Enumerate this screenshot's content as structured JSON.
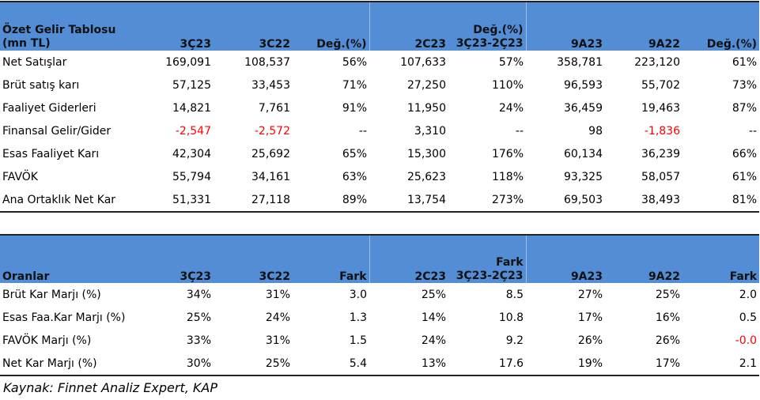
{
  "table1": {
    "header": {
      "title_line1": "Özet Gelir Tablosu",
      "title_line2": "(mn TL)",
      "c1": "3Ç23",
      "c2": "3C22",
      "c3": "Değ.(%)",
      "c4": "2C23",
      "c5_line1": "Değ.(%)",
      "c5_line2": "3Ç23-2Ç23",
      "c6": "9A23",
      "c7": "9A22",
      "c8": "Değ.(%)"
    },
    "rows": [
      {
        "label": "Net Satışlar",
        "c1": "169,091",
        "c2": "108,537",
        "c3": "56%",
        "c4": "107,633",
        "c5": "57%",
        "c6": "358,781",
        "c7": "223,120",
        "c8": "61%"
      },
      {
        "label": "Brüt satış karı",
        "c1": "57,125",
        "c2": "33,453",
        "c3": "71%",
        "c4": "27,250",
        "c5": "110%",
        "c6": "96,593",
        "c7": "55,702",
        "c8": "73%"
      },
      {
        "label": "Faaliyet Giderleri",
        "c1": "14,821",
        "c2": "7,761",
        "c3": "91%",
        "c4": "11,950",
        "c5": "24%",
        "c6": "36,459",
        "c7": "19,463",
        "c8": "87%"
      },
      {
        "label": "Finansal Gelir/Gider",
        "c1": "-2,547",
        "c2": "-2,572",
        "c3": "--",
        "c4": "3,310",
        "c5": "--",
        "c6": "98",
        "c7": "-1,836",
        "c8": "--"
      },
      {
        "label": "Esas Faaliyet Karı",
        "c1": "42,304",
        "c2": "25,692",
        "c3": "65%",
        "c4": "15,300",
        "c5": "176%",
        "c6": "60,134",
        "c7": "36,239",
        "c8": "66%"
      },
      {
        "label": "FAVÖK",
        "c1": "55,794",
        "c2": "34,161",
        "c3": "63%",
        "c4": "25,623",
        "c5": "118%",
        "c6": "93,325",
        "c7": "58,057",
        "c8": "61%"
      },
      {
        "label": "Ana Ortaklık Net Kar",
        "c1": "51,331",
        "c2": "27,118",
        "c3": "89%",
        "c4": "13,754",
        "c5": "273%",
        "c6": "69,503",
        "c7": "38,493",
        "c8": "81%"
      }
    ]
  },
  "table2": {
    "header": {
      "title": "Oranlar",
      "c1": "3Ç23",
      "c2": "3C22",
      "c3": "Fark",
      "c4": "2C23",
      "c5_line1": "Fark",
      "c5_line2": "3Ç23-2Ç23",
      "c6": "9A23",
      "c7": "9A22",
      "c8": "Fark"
    },
    "rows": [
      {
        "label": "Brüt Kar Marjı (%)",
        "c1": "34%",
        "c2": "31%",
        "c3": "3.0",
        "c4": "25%",
        "c5": "8.5",
        "c6": "27%",
        "c7": "25%",
        "c8": "2.0"
      },
      {
        "label": "Esas Faa.Kar Marjı (%)",
        "c1": "25%",
        "c2": "24%",
        "c3": "1.3",
        "c4": "14%",
        "c5": "10.8",
        "c6": "17%",
        "c7": "16%",
        "c8": "0.5"
      },
      {
        "label": "FAVÖK Marjı (%)",
        "c1": "33%",
        "c2": "31%",
        "c3": "1.5",
        "c4": "24%",
        "c5": "9.2",
        "c6": "26%",
        "c7": "26%",
        "c8": "-0.0"
      },
      {
        "label": "Net Kar Marjı (%)",
        "c1": "30%",
        "c2": "25%",
        "c3": "5.4",
        "c4": "13%",
        "c5": "17.6",
        "c6": "19%",
        "c7": "17%",
        "c8": "2.1"
      }
    ]
  },
  "source": "Kaynak: Finnet Analiz Expert, KAP",
  "colors": {
    "header_bg": "#538dd5",
    "negative": "#ff0000"
  }
}
